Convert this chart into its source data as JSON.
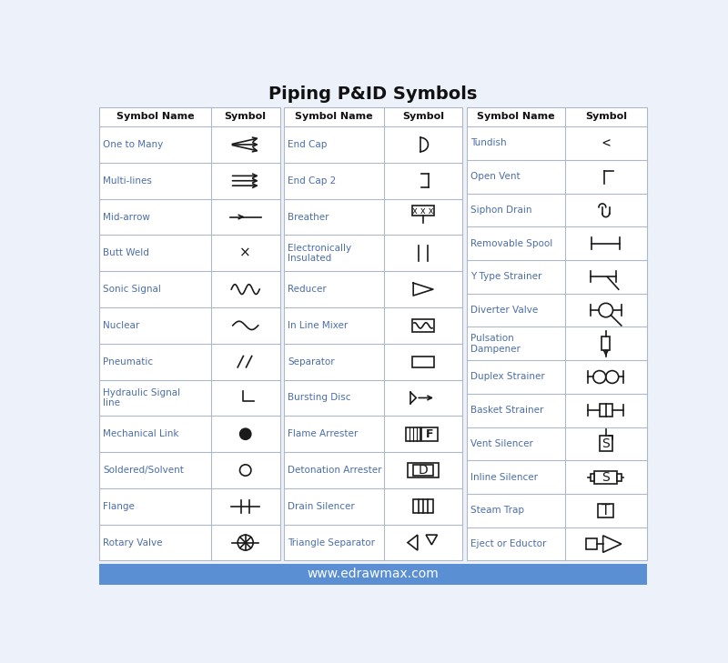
{
  "title": "Piping P&ID Symbols",
  "bg_color": "#EDF2FA",
  "footer_bg": "#5B8FD4",
  "footer_text": "www.edrawmax.com",
  "footer_text_color": "#ffffff",
  "name_text_color": "#4B6EA8",
  "col1_names": [
    "One to Many",
    "Multi-lines",
    "Mid-arrow",
    "Butt Weld",
    "Sonic Signal",
    "Nuclear",
    "Pneumatic",
    "Hydraulic Signal\nline",
    "Mechanical Link",
    "Soldered/Solvent",
    "Flange",
    "Rotary Valve"
  ],
  "col2_names": [
    "End Cap",
    "End Cap 2",
    "Breather",
    "Electronically\nInsulated",
    "Reducer",
    "In Line Mixer",
    "Separator",
    "Bursting Disc",
    "Flame Arrester",
    "Detonation Arrester",
    "Drain Silencer",
    "Triangle Separator"
  ],
  "col3_names": [
    "Tundish",
    "Open Vent",
    "Siphon Drain",
    "Removable Spool",
    "Y Type Strainer",
    "Diverter Valve",
    "Pulsation\nDampener",
    "Duplex Strainer",
    "Basket Strainer",
    "Vent Silencer",
    "Inline Silencer",
    "Steam Trap",
    "Eject or Eductor"
  ]
}
